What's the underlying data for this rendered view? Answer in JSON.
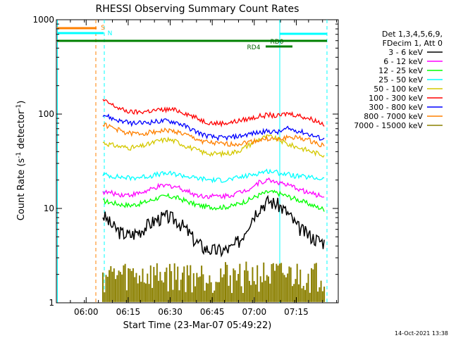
{
  "chart_data": {
    "type": "line",
    "title": "RHESSI Observing Summary Count Rates",
    "xlabel": "Start Time (23-Mar-07 05:49:22)",
    "ylabel_main": "Count Rate (s",
    "ylabel_sup1": "-1",
    "ylabel_mid": " detector",
    "ylabel_sup2": "-1",
    "ylabel_end": ")",
    "y_scale": "log",
    "ylim": [
      1,
      1000
    ],
    "y_ticks": [
      {
        "value": 1,
        "label": "1"
      },
      {
        "value": 10,
        "label": "10"
      },
      {
        "value": 100,
        "label": "100"
      },
      {
        "value": 1000,
        "label": "1000"
      }
    ],
    "x_range_minutes": [
      0,
      100.6
    ],
    "x_ticks": [
      {
        "minutes": 10.63,
        "label": "06:00"
      },
      {
        "minutes": 25.63,
        "label": "06:15"
      },
      {
        "minutes": 40.63,
        "label": "06:30"
      },
      {
        "minutes": 55.63,
        "label": "06:45"
      },
      {
        "minutes": 70.63,
        "label": "07:00"
      },
      {
        "minutes": 85.63,
        "label": "07:15"
      }
    ],
    "legend_header": [
      "Det 1,3,4,5,6,9,",
      "FDecim 1, Att 0"
    ],
    "legend_placement": "right, outside plot",
    "series": [
      {
        "name": "3 - 6 keV",
        "color": "#000000",
        "values": [
          8.5,
          6.5,
          5.5,
          5.2,
          5.8,
          6.8,
          7.8,
          8.2,
          7.5,
          6.0,
          4.5,
          3.8,
          3.6,
          3.6,
          3.8,
          4.8,
          7.5,
          10.5,
          12.0,
          11.0,
          9.0,
          6.5,
          5.5,
          4.8,
          4.4
        ]
      },
      {
        "name": "6 - 12 keV",
        "color": "#ff00ff",
        "values": [
          15,
          14.5,
          14,
          14,
          14.5,
          15.5,
          17,
          17.5,
          17,
          15.5,
          14,
          13.5,
          13.5,
          13.5,
          14,
          15,
          16.5,
          19,
          20,
          19,
          17.5,
          16.5,
          15,
          14,
          13.5
        ]
      },
      {
        "name": "12 - 25 keV",
        "color": "#00ff00",
        "values": [
          12,
          11.5,
          11,
          10.8,
          11.2,
          12,
          13,
          13.5,
          13,
          12,
          11,
          10.5,
          10.3,
          10.3,
          10.6,
          11.5,
          12.5,
          14,
          15,
          14.5,
          13.5,
          12.5,
          11.5,
          10.5,
          9.8
        ]
      },
      {
        "name": "25 - 50 keV",
        "color": "#00ffff",
        "values": [
          23,
          22,
          21.5,
          21,
          21.5,
          22,
          23,
          23.5,
          23,
          22,
          21,
          20.5,
          20,
          20,
          20.5,
          21.5,
          22.5,
          24,
          25,
          24,
          23,
          22,
          21.5,
          21,
          20.5
        ]
      },
      {
        "name": "50 - 100 keV",
        "color": "#d4c800",
        "values": [
          50,
          47,
          45,
          44,
          45,
          48,
          52,
          54,
          51,
          46,
          42,
          39,
          38,
          38,
          39,
          42,
          48,
          55,
          58,
          54,
          48,
          45,
          42,
          39,
          37
        ]
      },
      {
        "name": "100 - 300 keV",
        "color": "#ff0000",
        "values": [
          140,
          125,
          112,
          105,
          105,
          108,
          110,
          112,
          110,
          102,
          92,
          84,
          80,
          80,
          82,
          86,
          90,
          95,
          98,
          95,
          102,
          98,
          92,
          86,
          78
        ]
      },
      {
        "name": "300 - 800 keV",
        "color": "#0000ff",
        "values": [
          100,
          90,
          84,
          80,
          80,
          82,
          84,
          85,
          82,
          74,
          66,
          60,
          57,
          56,
          57,
          59,
          62,
          64,
          66,
          64,
          70,
          67,
          63,
          58,
          54
        ]
      },
      {
        "name": "800 - 7000 keV",
        "color": "#ff8000",
        "values": [
          78,
          72,
          66,
          62,
          62,
          64,
          66,
          67,
          65,
          60,
          55,
          51,
          49,
          48,
          48,
          49,
          51,
          53,
          55,
          53,
          57,
          56,
          54,
          50,
          46
        ]
      },
      {
        "name": "7000 - 15000 keV",
        "color": "#8b8000",
        "values": [
          2.0,
          2.0,
          2.0,
          2.0,
          2.0,
          2.0,
          2.0,
          2.0,
          2.0,
          2.0,
          2.0,
          2.0,
          2.0,
          2.0,
          2.0,
          2.0,
          2.0,
          2.0,
          2.0,
          2.0,
          2.0,
          2.0,
          2.0,
          2.0,
          2.0
        ]
      }
    ],
    "annotations": [
      {
        "label": "S",
        "color": "#ff8000"
      },
      {
        "label": "N",
        "color": "#00ffff"
      },
      {
        "label": "RD0",
        "color": "#006400"
      },
      {
        "label": "RD4",
        "color": "#006400"
      }
    ],
    "footer_stamp": "14-Oct-2021 13:38"
  }
}
